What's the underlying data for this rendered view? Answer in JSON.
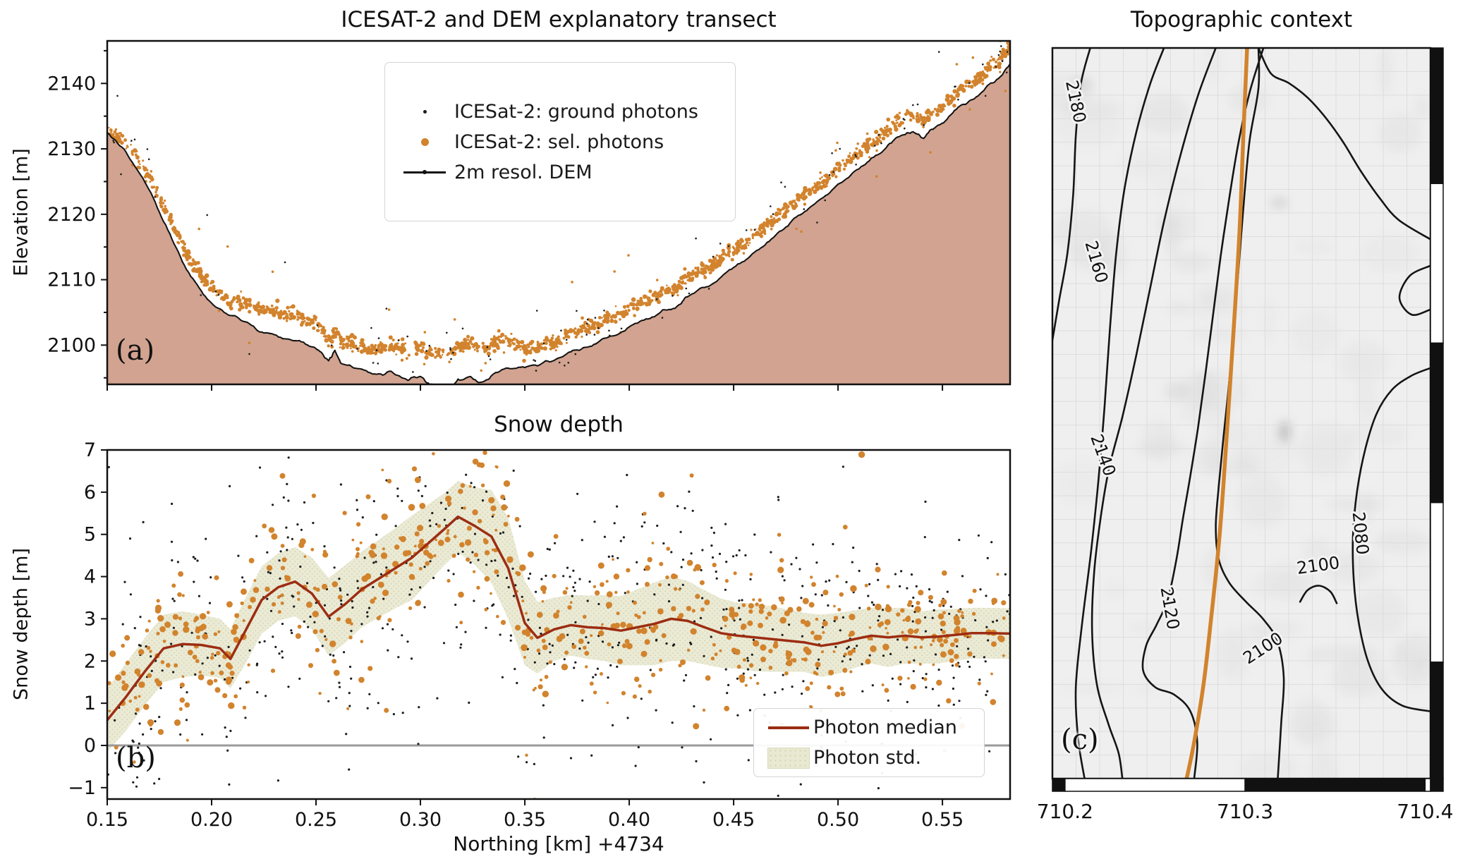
{
  "panel_a": {
    "title": "ICESAT-2 and DEM explanatory transect",
    "ylabel": "Elevation [m]",
    "letter": "(a)",
    "legend": [
      "ICESat-2: ground photons",
      "ICESat-2: sel. photons",
      "2m resol. DEM"
    ]
  },
  "panel_b": {
    "title": "Snow depth",
    "ylabel": "Snow depth [m]",
    "xlabel": "Northing [km] +4734",
    "letter": "(b)",
    "legend": [
      "Photon median",
      "Photon std."
    ]
  },
  "panel_c": {
    "title": "Topographic context",
    "letter": "(c)"
  },
  "colors": {
    "background": "#ffffff",
    "dem_fill": "#d1a390",
    "dem_line": "#111111",
    "ground_photons": "#1c1c1c",
    "sel_photons": "#d2832d",
    "median_line": "#9c2d12",
    "std_band": "#e9e9d3",
    "std_band_dot": "#d2d2ab",
    "zero_line": "#9a9a9a",
    "map_bg": "#efefef",
    "map_grid": "#dddddd",
    "contour": "#151515",
    "transect": "#d2832d",
    "frame": "#111111"
  },
  "chart_data": {
    "panel_a": {
      "type": "line+scatter",
      "title": "ICESAT-2 and DEM explanatory transect",
      "ylabel": "Elevation [m]",
      "x_range": [
        0.15,
        0.5824
      ],
      "y_range": [
        2094,
        2146.5
      ],
      "yticks": [
        2100,
        2110,
        2120,
        2130,
        2140
      ],
      "yticks_minor": [
        2095,
        2105,
        2115,
        2125,
        2135,
        2145
      ],
      "xticks": [
        0.15,
        0.2,
        0.25,
        0.3,
        0.35,
        0.4,
        0.45,
        0.5,
        0.55
      ],
      "dem_profile": {
        "x": [
          0.15,
          0.158,
          0.166,
          0.174,
          0.182,
          0.19,
          0.198,
          0.206,
          0.214,
          0.222,
          0.23,
          0.238,
          0.246,
          0.252,
          0.256,
          0.259,
          0.262,
          0.27,
          0.278,
          0.286,
          0.294,
          0.3,
          0.306,
          0.312,
          0.318,
          0.324,
          0.33,
          0.336,
          0.344,
          0.352,
          0.36,
          0.368,
          0.376,
          0.384,
          0.392,
          0.4,
          0.408,
          0.416,
          0.424,
          0.428,
          0.436,
          0.444,
          0.452,
          0.46,
          0.468,
          0.476,
          0.484,
          0.492,
          0.5,
          0.508,
          0.516,
          0.524,
          0.53,
          0.536,
          0.541,
          0.547,
          0.554,
          0.561,
          0.568,
          0.575,
          0.5824
        ],
        "elev": [
          2132.5,
          2130.0,
          2126.0,
          2121.0,
          2115.5,
          2110.5,
          2107.0,
          2105.0,
          2103.8,
          2102.2,
          2101.6,
          2100.8,
          2100.0,
          2099.0,
          2097.6,
          2099.2,
          2097.2,
          2096.4,
          2095.6,
          2096.0,
          2094.6,
          2095.2,
          2094.0,
          2093.2,
          2094.8,
          2095.2,
          2094.4,
          2095.8,
          2096.4,
          2096.8,
          2097.6,
          2098.2,
          2099.2,
          2100.2,
          2101.4,
          2102.8,
          2104.0,
          2105.4,
          2106.2,
          2107.4,
          2108.8,
          2110.4,
          2112.4,
          2114.2,
          2116.2,
          2118.2,
          2120.4,
          2122.4,
          2124.6,
          2126.6,
          2128.6,
          2130.6,
          2132.0,
          2132.6,
          2131.6,
          2133.4,
          2135.2,
          2136.8,
          2138.4,
          2140.2,
          2143.0
        ]
      },
      "scatter_params": {
        "seed": 42,
        "sel_band_n": 1500,
        "sel_band_sigma_m": 0.5,
        "sel_outlier_n": 40,
        "ground_n": 95,
        "ground_sigma_m": 2.0,
        "ground_outlier_n": 16
      }
    },
    "panel_b": {
      "type": "scatter+line+band",
      "title": "Snow depth",
      "ylabel": "Snow depth [m]",
      "xlabel": "Northing [km] +4734",
      "x_range": [
        0.15,
        0.5824
      ],
      "y_range": [
        -1.27,
        7
      ],
      "yticks": [
        -1,
        0,
        1,
        2,
        3,
        4,
        5,
        6,
        7
      ],
      "xticks": [
        0.15,
        0.2,
        0.25,
        0.3,
        0.35,
        0.4,
        0.45,
        0.5,
        0.55
      ],
      "zero_line": 0,
      "median": {
        "x": [
          0.15,
          0.159,
          0.168,
          0.177,
          0.186,
          0.195,
          0.204,
          0.209,
          0.216,
          0.224,
          0.232,
          0.24,
          0.248,
          0.256,
          0.264,
          0.272,
          0.28,
          0.288,
          0.296,
          0.304,
          0.312,
          0.318,
          0.326,
          0.334,
          0.342,
          0.35,
          0.356,
          0.364,
          0.372,
          0.38,
          0.388,
          0.396,
          0.404,
          0.412,
          0.42,
          0.428,
          0.436,
          0.444,
          0.452,
          0.46,
          0.468,
          0.476,
          0.484,
          0.492,
          0.5,
          0.508,
          0.516,
          0.524,
          0.532,
          0.54,
          0.548,
          0.556,
          0.564,
          0.572,
          0.5824
        ],
        "depth": [
          0.6,
          1.15,
          1.75,
          2.3,
          2.4,
          2.38,
          2.3,
          2.05,
          2.7,
          3.45,
          3.75,
          3.88,
          3.6,
          3.05,
          3.35,
          3.7,
          3.95,
          4.2,
          4.45,
          4.8,
          5.15,
          5.42,
          5.2,
          4.95,
          4.2,
          2.9,
          2.55,
          2.75,
          2.85,
          2.8,
          2.78,
          2.72,
          2.8,
          2.88,
          3.0,
          2.95,
          2.8,
          2.66,
          2.6,
          2.56,
          2.52,
          2.48,
          2.44,
          2.36,
          2.42,
          2.52,
          2.6,
          2.56,
          2.6,
          2.56,
          2.58,
          2.62,
          2.66,
          2.66,
          2.65
        ],
        "std": [
          0.75,
          0.8,
          0.8,
          0.8,
          0.78,
          0.72,
          0.7,
          0.7,
          0.78,
          0.8,
          0.8,
          0.82,
          0.85,
          0.92,
          0.92,
          0.9,
          0.92,
          0.95,
          1.0,
          0.92,
          0.85,
          0.85,
          0.92,
          1.1,
          1.2,
          1.0,
          0.85,
          0.75,
          0.72,
          0.75,
          0.78,
          0.82,
          0.9,
          0.98,
          1.0,
          0.95,
          0.88,
          0.82,
          0.78,
          0.8,
          0.78,
          0.74,
          0.7,
          0.74,
          0.72,
          0.68,
          0.66,
          0.7,
          0.66,
          0.62,
          0.64,
          0.62,
          0.6,
          0.6,
          0.6
        ]
      },
      "scatter_params": {
        "seed": 77,
        "sel_n": 650,
        "sel_sigma_scale": 1.15,
        "ground_n": 650,
        "ground_sigma_scale": 1.8,
        "ground_outlier_frac": 0.1
      }
    },
    "panel_c": {
      "type": "map",
      "title": "Topographic context",
      "easting_range": [
        710.193,
        710.403
      ],
      "northing_range": [
        4734.127,
        4734.585
      ],
      "xticks": [
        710.2,
        710.3,
        710.4
      ],
      "yticks": [
        4734.5,
        4734.4,
        4734.3,
        4734.2
      ],
      "grid": {
        "nx": 16,
        "ny": 31
      },
      "transect": [
        [
          0.515,
          0.0
        ],
        [
          0.505,
          0.12
        ],
        [
          0.495,
          0.25
        ],
        [
          0.48,
          0.38
        ],
        [
          0.465,
          0.5
        ],
        [
          0.452,
          0.6
        ],
        [
          0.44,
          0.68
        ],
        [
          0.42,
          0.78
        ],
        [
          0.4,
          0.87
        ],
        [
          0.375,
          0.95
        ],
        [
          0.355,
          1.0
        ]
      ],
      "contours": [
        {
          "label": "2180",
          "lu": 0.047,
          "lv": 0.075,
          "rot": 78,
          "pts": [
            [
              0.1,
              0
            ],
            [
              0.075,
              0.05
            ],
            [
              0.062,
              0.12
            ],
            [
              0.055,
              0.2
            ],
            [
              0.04,
              0.28
            ],
            [
              0.018,
              0.345
            ],
            [
              0,
              0.4
            ]
          ]
        },
        {
          "label": "2160",
          "lu": 0.102,
          "lv": 0.295,
          "rot": 74,
          "pts": [
            [
              0.295,
              0
            ],
            [
              0.258,
              0.05
            ],
            [
              0.222,
              0.115
            ],
            [
              0.19,
              0.195
            ],
            [
              0.168,
              0.285
            ],
            [
              0.152,
              0.385
            ],
            [
              0.138,
              0.49
            ],
            [
              0.122,
              0.59
            ],
            [
              0.102,
              0.69
            ],
            [
              0.078,
              0.79
            ],
            [
              0.062,
              0.875
            ],
            [
              0.068,
              0.945
            ],
            [
              0.085,
              1
            ]
          ]
        },
        {
          "label": "2140",
          "lu": 0.12,
          "lv": 0.56,
          "rot": 70,
          "pts": [
            [
              0.432,
              0
            ],
            [
              0.385,
              0.065
            ],
            [
              0.338,
              0.148
            ],
            [
              0.295,
              0.238
            ],
            [
              0.258,
              0.33
            ],
            [
              0.222,
              0.42
            ],
            [
              0.185,
              0.505
            ],
            [
              0.15,
              0.575
            ],
            [
              0.127,
              0.645
            ],
            [
              0.11,
              0.72
            ],
            [
              0.105,
              0.8
            ],
            [
              0.118,
              0.872
            ],
            [
              0.148,
              0.925
            ],
            [
              0.175,
              0.965
            ],
            [
              0.185,
              1
            ]
          ]
        },
        {
          "label": "2120",
          "lu": 0.296,
          "lv": 0.768,
          "rot": 80,
          "pts": [
            [
              0.558,
              0
            ],
            [
              0.522,
              0.06
            ],
            [
              0.492,
              0.13
            ],
            [
              0.468,
              0.205
            ],
            [
              0.445,
              0.285
            ],
            [
              0.425,
              0.365
            ],
            [
              0.405,
              0.445
            ],
            [
              0.385,
              0.52
            ],
            [
              0.365,
              0.585
            ],
            [
              0.345,
              0.645
            ],
            [
              0.328,
              0.7
            ],
            [
              0.305,
              0.755
            ],
            [
              0.275,
              0.79
            ],
            [
              0.248,
              0.818
            ],
            [
              0.24,
              0.852
            ],
            [
              0.272,
              0.875
            ],
            [
              0.322,
              0.885
            ],
            [
              0.365,
              0.908
            ],
            [
              0.383,
              0.95
            ],
            [
              0.375,
              1
            ]
          ]
        },
        {
          "label": "",
          "lu": 0,
          "lv": 0,
          "rot": 0,
          "pts": [
            [
              0.545,
              0
            ],
            [
              0.578,
              0.035
            ],
            [
              0.625,
              0.048
            ],
            [
              0.675,
              0.068
            ],
            [
              0.722,
              0.095
            ],
            [
              0.768,
              0.128
            ],
            [
              0.815,
              0.168
            ],
            [
              0.865,
              0.205
            ],
            [
              0.915,
              0.235
            ],
            [
              1,
              0.262
            ]
          ]
        },
        {
          "label": "",
          "lu": 0,
          "lv": 0,
          "rot": 0,
          "pts": [
            [
              1,
              0.298
            ],
            [
              0.945,
              0.312
            ],
            [
              0.918,
              0.342
            ],
            [
              0.95,
              0.365
            ],
            [
              1,
              0.358
            ]
          ]
        },
        {
          "label": "2080",
          "lu": 0.8,
          "lv": 0.665,
          "rot": 84,
          "pts": [
            [
              1,
              0.438
            ],
            [
              0.948,
              0.449
            ],
            [
              0.898,
              0.468
            ],
            [
              0.858,
              0.5
            ],
            [
              0.828,
              0.548
            ],
            [
              0.806,
              0.606
            ],
            [
              0.795,
              0.668
            ],
            [
              0.797,
              0.728
            ],
            [
              0.81,
              0.786
            ],
            [
              0.835,
              0.84
            ],
            [
              0.872,
              0.878
            ],
            [
              0.925,
              0.9
            ],
            [
              1,
              0.908
            ]
          ]
        },
        {
          "label": "2100",
          "lu": 0.565,
          "lv": 0.828,
          "rot": -33,
          "pts": [
            [
              0.545,
              0.0
            ],
            [
              0.545,
              0.055
            ],
            [
              0.522,
              0.125
            ],
            [
              0.508,
              0.2
            ],
            [
              0.495,
              0.285
            ],
            [
              0.482,
              0.37
            ],
            [
              0.468,
              0.455
            ],
            [
              0.452,
              0.535
            ],
            [
              0.44,
              0.6
            ],
            [
              0.432,
              0.655
            ],
            [
              0.44,
              0.7
            ],
            [
              0.468,
              0.732
            ],
            [
              0.512,
              0.758
            ],
            [
              0.558,
              0.782
            ],
            [
              0.595,
              0.812
            ],
            [
              0.612,
              0.862
            ],
            [
              0.605,
              0.925
            ],
            [
              0.596,
              1
            ]
          ]
        },
        {
          "label": "2100",
          "lu": 0.705,
          "lv": 0.716,
          "rot": -8,
          "pts": [
            [
              0.655,
              0.758
            ],
            [
              0.675,
              0.742
            ],
            [
              0.705,
              0.736
            ],
            [
              0.735,
              0.744
            ],
            [
              0.752,
              0.76
            ]
          ]
        }
      ]
    }
  }
}
